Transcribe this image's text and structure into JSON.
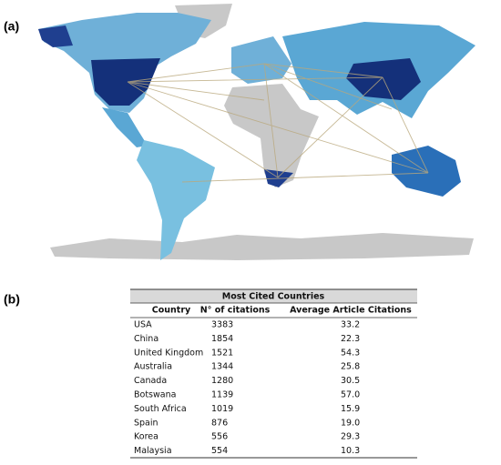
{
  "figure": {
    "panel_a_label": "(a)",
    "panel_b_label": "(b)",
    "table": {
      "title": "Most Cited Countries",
      "headers": [
        "Country",
        "N° of citations",
        "Average Article Citations"
      ],
      "rows": [
        [
          "USA",
          "3383",
          "33.2"
        ],
        [
          "China",
          "1854",
          "22.3"
        ],
        [
          "United Kingdom",
          "1521",
          "54.3"
        ],
        [
          "Australia",
          "1344",
          "25.8"
        ],
        [
          "Canada",
          "1280",
          "30.5"
        ],
        [
          "Botswana",
          "1139",
          "57.0"
        ],
        [
          "South Africa",
          "1019",
          "15.9"
        ],
        [
          "Spain",
          "876",
          "19.0"
        ],
        [
          "Korea",
          "556",
          "29.3"
        ],
        [
          "Malaysia",
          "554",
          "10.3"
        ]
      ]
    }
  }
}
